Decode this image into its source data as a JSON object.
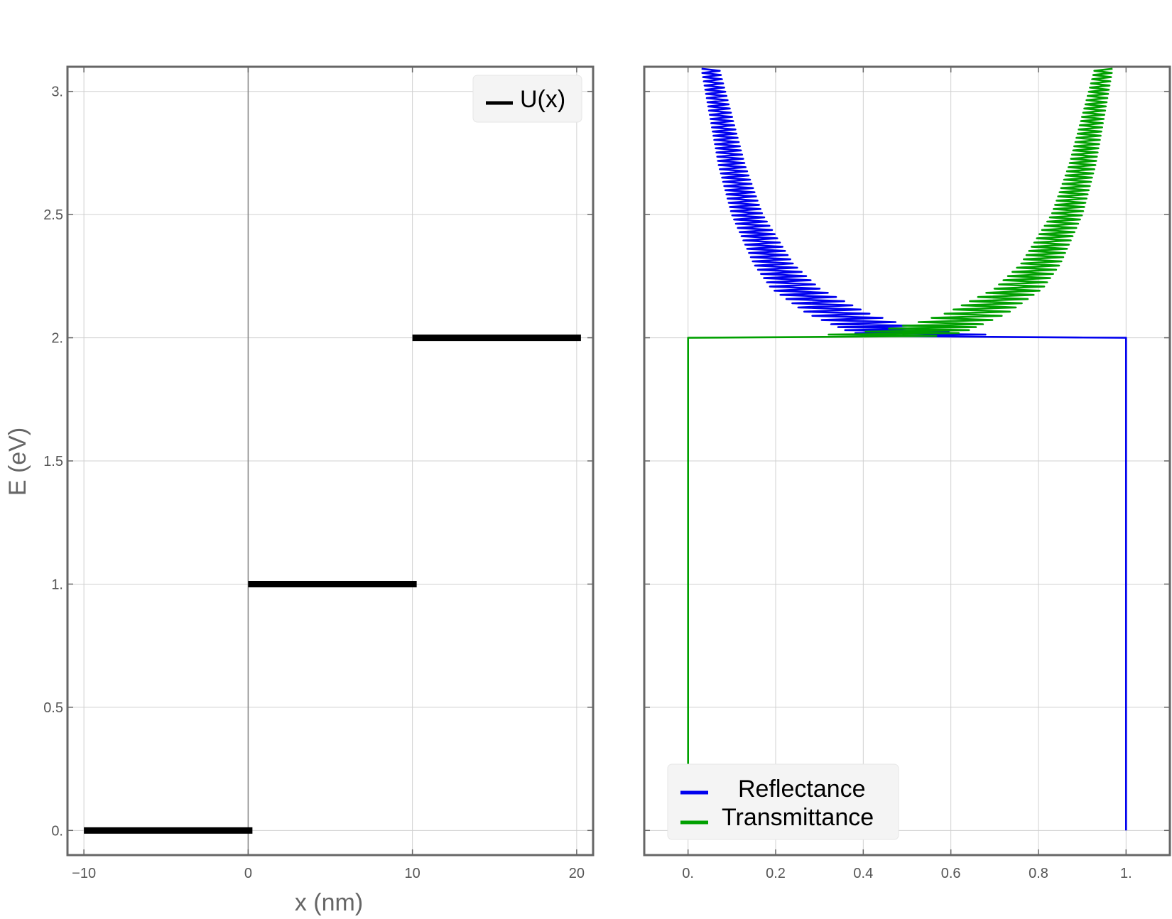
{
  "chart_data": [
    {
      "type": "line",
      "panel": "left",
      "title": "",
      "xlabel": "x (nm)",
      "ylabel": "E (eV)",
      "xlim": [
        -11,
        21
      ],
      "ylim": [
        -0.1,
        3.1
      ],
      "x_ticks": [
        -10,
        0,
        10,
        20
      ],
      "x_tick_labels": [
        "−10",
        "0",
        "10",
        "20"
      ],
      "y_ticks": [
        0,
        0.5,
        1,
        1.5,
        2,
        2.5,
        3
      ],
      "y_tick_labels": [
        "0.",
        "0.5",
        "1.",
        "1.5",
        "2.",
        "2.5",
        "3."
      ],
      "grid": true,
      "legend_position": "top-right",
      "series": [
        {
          "name": "U(x)",
          "color": "#000000",
          "segments": [
            {
              "x": [
                -10,
                0
              ],
              "y": [
                0,
                0
              ]
            },
            {
              "x": [
                0,
                10
              ],
              "y": [
                1,
                1
              ]
            },
            {
              "x": [
                10,
                20
              ],
              "y": [
                2,
                2
              ]
            }
          ]
        }
      ]
    },
    {
      "type": "line",
      "panel": "right",
      "title": "",
      "xlabel": "",
      "ylabel": "",
      "xlim": [
        -0.1,
        1.1
      ],
      "ylim": [
        -0.1,
        3.1
      ],
      "x_ticks": [
        0,
        0.2,
        0.4,
        0.6,
        0.8,
        1
      ],
      "x_tick_labels": [
        "0.",
        "0.2",
        "0.4",
        "0.6",
        "0.8",
        "1."
      ],
      "y_ticks": [
        0,
        0.5,
        1,
        1.5,
        2,
        2.5,
        3
      ],
      "grid": true,
      "legend_position": "bottom-left",
      "series": [
        {
          "name": "Reflectance",
          "color": "#0000ee",
          "points": [
            {
              "E": 0.0,
              "min": 1.0,
              "max": 1.0
            },
            {
              "E": 1.0,
              "min": 1.0,
              "max": 1.0
            },
            {
              "E": 2.0,
              "min": 1.0,
              "max": 1.0
            },
            {
              "E": 2.001,
              "min": 0.5,
              "max": 0.89
            },
            {
              "E": 2.01,
              "min": 0.4,
              "max": 0.7
            },
            {
              "E": 2.03,
              "min": 0.36,
              "max": 0.56
            },
            {
              "E": 2.06,
              "min": 0.32,
              "max": 0.48
            },
            {
              "E": 2.1,
              "min": 0.27,
              "max": 0.41
            },
            {
              "E": 2.2,
              "min": 0.19,
              "max": 0.3
            },
            {
              "E": 2.3,
              "min": 0.15,
              "max": 0.24
            },
            {
              "E": 2.5,
              "min": 0.1,
              "max": 0.17
            },
            {
              "E": 2.7,
              "min": 0.07,
              "max": 0.13
            },
            {
              "E": 2.9,
              "min": 0.05,
              "max": 0.1
            },
            {
              "E": 3.1,
              "min": 0.03,
              "max": 0.07
            }
          ]
        },
        {
          "name": "Transmittance",
          "color": "#00a000",
          "points": [
            {
              "E": 0.0,
              "min": 0.0,
              "max": 0.0
            },
            {
              "E": 1.0,
              "min": 0.0,
              "max": 0.0
            },
            {
              "E": 2.0,
              "min": 0.0,
              "max": 0.0
            },
            {
              "E": 2.001,
              "min": 0.11,
              "max": 0.5
            },
            {
              "E": 2.01,
              "min": 0.3,
              "max": 0.6
            },
            {
              "E": 2.03,
              "min": 0.44,
              "max": 0.64
            },
            {
              "E": 2.06,
              "min": 0.52,
              "max": 0.68
            },
            {
              "E": 2.1,
              "min": 0.59,
              "max": 0.73
            },
            {
              "E": 2.2,
              "min": 0.7,
              "max": 0.81
            },
            {
              "E": 2.3,
              "min": 0.76,
              "max": 0.85
            },
            {
              "E": 2.5,
              "min": 0.83,
              "max": 0.9
            },
            {
              "E": 2.7,
              "min": 0.87,
              "max": 0.93
            },
            {
              "E": 2.9,
              "min": 0.9,
              "max": 0.95
            },
            {
              "E": 3.1,
              "min": 0.93,
              "max": 0.97
            }
          ]
        }
      ]
    }
  ]
}
